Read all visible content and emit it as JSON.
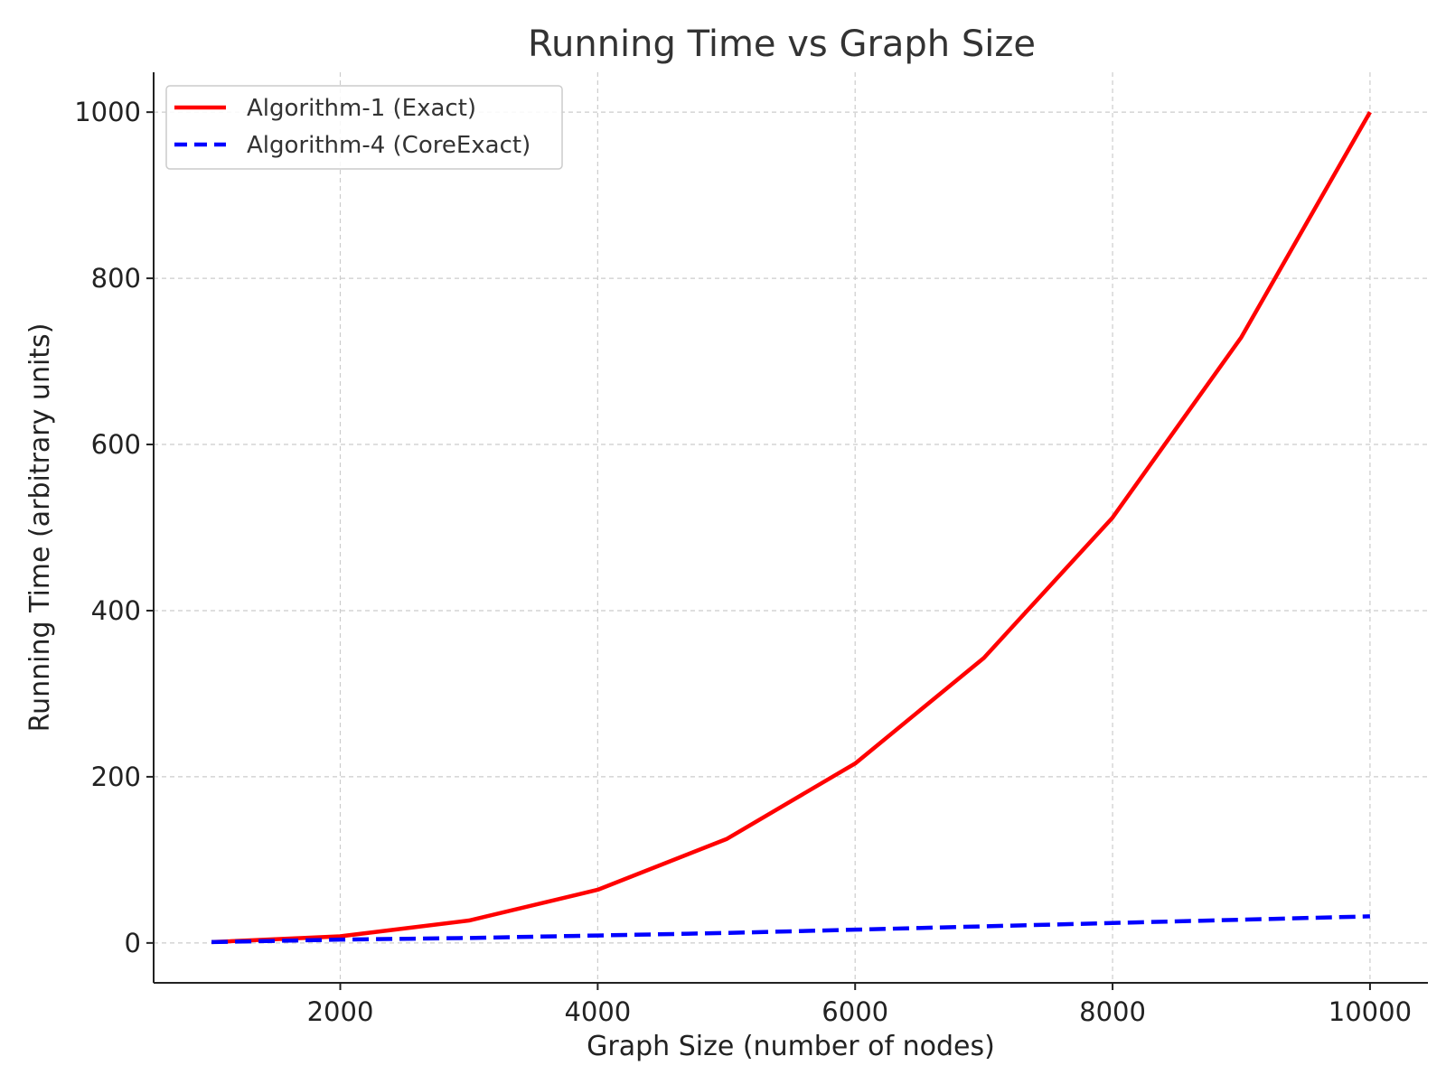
{
  "chart_data": {
    "type": "line",
    "title": "Running Time vs Graph Size",
    "xlabel": "Graph Size (number of nodes)",
    "ylabel": "Running Time (arbitrary units)",
    "x": [
      1000,
      2000,
      3000,
      4000,
      5000,
      6000,
      7000,
      8000,
      9000,
      10000
    ],
    "xlim": [
      550,
      10450
    ],
    "ylim": [
      -48,
      1048
    ],
    "xticks": [
      2000,
      4000,
      6000,
      8000,
      10000
    ],
    "yticks": [
      0,
      200,
      400,
      600,
      800,
      1000
    ],
    "grid": true,
    "legend_position": "top-left",
    "series": [
      {
        "name": "Algorithm-1 (Exact)",
        "color": "#ff0000",
        "style": "solid",
        "values": [
          1,
          8,
          27,
          64,
          125,
          216,
          343,
          512,
          729,
          1000
        ]
      },
      {
        "name": "Algorithm-4 (CoreExact)",
        "color": "#0000ff",
        "style": "dashed",
        "values": [
          1,
          4,
          6,
          9,
          12,
          16,
          20,
          24,
          28,
          32
        ]
      }
    ]
  }
}
